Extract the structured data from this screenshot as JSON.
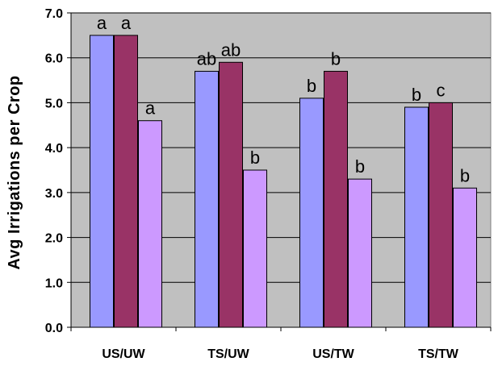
{
  "chart_data": {
    "type": "bar",
    "title": "",
    "xlabel": "",
    "ylabel": "Avg Irrigations per Crop",
    "ylim": [
      0,
      7
    ],
    "yticks": [
      "0.0",
      "1.0",
      "2.0",
      "3.0",
      "4.0",
      "5.0",
      "6.0",
      "7.0"
    ],
    "categories": [
      "US/UW",
      "TS/UW",
      "US/TW",
      "TS/TW"
    ],
    "grid": true,
    "legend": "none",
    "background_color": "#c0c0c0",
    "series": [
      {
        "color": "#9999ff",
        "values": [
          6.5,
          5.7,
          5.1,
          4.9
        ],
        "labels": [
          "a",
          "ab",
          "b",
          "b"
        ]
      },
      {
        "color": "#993366",
        "values": [
          6.5,
          5.9,
          5.7,
          5.0
        ],
        "labels": [
          "a",
          "ab",
          "b",
          "c"
        ]
      },
      {
        "color": "#cc99ff",
        "values": [
          4.6,
          3.5,
          3.3,
          3.1
        ],
        "labels": [
          "a",
          "b",
          "b",
          "b"
        ]
      }
    ]
  }
}
